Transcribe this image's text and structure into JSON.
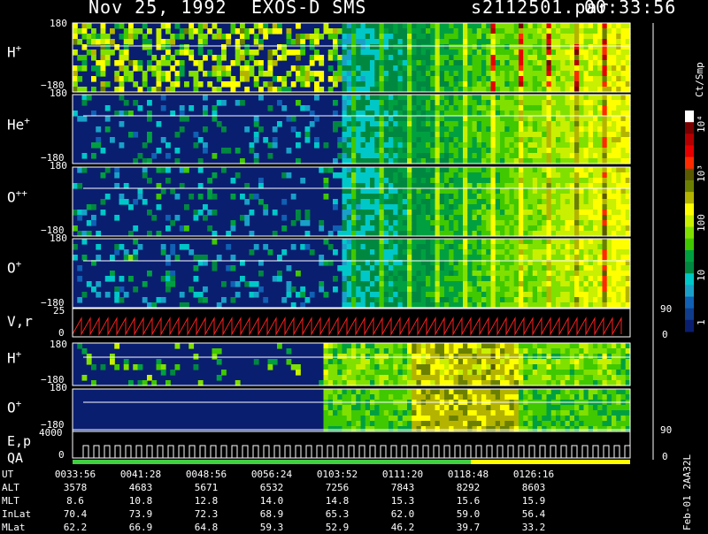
{
  "header": {
    "date": "Nov 25, 1992",
    "instrument": "EXOS-D SMS",
    "file": "s2112501.par",
    "time": "00:33:56"
  },
  "panels": {
    "hplus_top": {
      "label": "H",
      "sup": "+",
      "ymax": "180",
      "ymin": "−180"
    },
    "heplus": {
      "label": "He",
      "sup": "+",
      "ymax": "180",
      "ymin": "−180"
    },
    "oplusplus": {
      "label": "O",
      "sup": "++",
      "ymax": "180",
      "ymin": "−180"
    },
    "oplus_top": {
      "label": "O",
      "sup": "+",
      "ymax": "180",
      "ymin": "−180"
    },
    "vr": {
      "label": "V,r",
      "ymax": "25",
      "ymin": "0",
      "rmax": "90",
      "rmin": "0"
    },
    "hplus_bot": {
      "label": "H",
      "sup": "+",
      "ymax": "180",
      "ymin": "−180"
    },
    "oplus_bot": {
      "label": "O",
      "sup": "+",
      "ymax": "180",
      "ymin": "−180"
    },
    "ep": {
      "label_e": "E,p",
      "label_qa": "QA",
      "ymax": "4000",
      "ymin": "0",
      "rmax": "90",
      "rmin": "0"
    }
  },
  "colorbar": {
    "unit": "Ct/Smp",
    "ticks": [
      "10⁴",
      "10³",
      "100",
      "10",
      "1"
    ],
    "colors": [
      "#ffffff",
      "#7a0000",
      "#b40000",
      "#e60000",
      "#ff2a00",
      "#5a5a00",
      "#6b8000",
      "#b4b400",
      "#ffff00",
      "#c8f000",
      "#80e000",
      "#40c800",
      "#00a040",
      "#008840",
      "#00c8c8",
      "#1aa0c8",
      "#1060b4",
      "#103c8c",
      "#0a1e70"
    ]
  },
  "footer": {
    "id": "Feb-01 2AA32L",
    "rows": [
      {
        "name": "UT",
        "values": [
          "0033:56",
          "0041:28",
          "0048:56",
          "0056:24",
          "0103:52",
          "0111:20",
          "0118:48",
          "0126:16"
        ]
      },
      {
        "name": "ALT",
        "values": [
          "3578",
          "4683",
          "5671",
          "6532",
          "7256",
          "7843",
          "8292",
          "8603"
        ]
      },
      {
        "name": "MLT",
        "values": [
          "8.6",
          "10.8",
          "12.8",
          "14.0",
          "14.8",
          "15.3",
          "15.6",
          "15.9"
        ]
      },
      {
        "name": "InLat",
        "values": [
          "70.4",
          "73.9",
          "72.3",
          "68.9",
          "65.3",
          "62.0",
          "59.0",
          "56.4"
        ]
      },
      {
        "name": "MLat",
        "values": [
          "62.2",
          "66.9",
          "64.8",
          "59.3",
          "52.9",
          "46.2",
          "39.7",
          "33.2"
        ]
      }
    ]
  },
  "chart_data": {
    "type": "heatmap",
    "title": "Nov 25, 1992   EXOS-D SMS",
    "x_ticks": [
      "0033:56",
      "0041:28",
      "0048:56",
      "0056:24",
      "0103:52",
      "0111:20",
      "0118:48",
      "0126:16"
    ],
    "panels": [
      "H+",
      "He+",
      "O++",
      "O+",
      "V,r",
      "H+",
      "O+",
      "E,p"
    ],
    "colorbar_unit": "Ct/Smp",
    "colorbar_ticks": [
      "10⁴",
      "10³",
      "100",
      "10",
      "1"
    ]
  }
}
